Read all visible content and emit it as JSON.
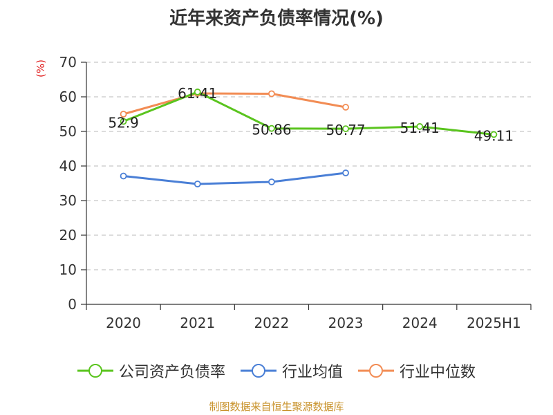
{
  "colors": {
    "company": "#5ac41e",
    "industry_avg": "#4a7fd6",
    "industry_median": "#f28c54",
    "grid": "#c8c8c8",
    "axis": "#333333",
    "ylabel": "#e01e1e",
    "footer": "#c8922a"
  },
  "footer": "制图数据来自恒生聚源数据库",
  "chart_data": {
    "type": "line",
    "title": "近年来资产负债率情况(%)",
    "ylabel": "(%)",
    "xlabel": "",
    "categories": [
      "2020",
      "2021",
      "2022",
      "2023",
      "2024",
      "2025H1"
    ],
    "ylim": [
      0,
      70
    ],
    "yticks": [
      0,
      10,
      20,
      30,
      40,
      50,
      60,
      70
    ],
    "grid": "horizontal-dashed",
    "legend_position": "bottom",
    "series": [
      {
        "name": "公司资产负债率",
        "values": [
          52.9,
          61.41,
          50.86,
          50.77,
          51.41,
          49.11
        ],
        "labels": [
          "52.9",
          "61.41",
          "50.86",
          "50.77",
          "51.41",
          "49.11"
        ]
      },
      {
        "name": "行业均值",
        "values": [
          37.1,
          34.8,
          35.4,
          38.0,
          null,
          null
        ]
      },
      {
        "name": "行业中位数",
        "values": [
          55.0,
          61.0,
          60.9,
          57.0,
          null,
          null
        ]
      }
    ]
  }
}
